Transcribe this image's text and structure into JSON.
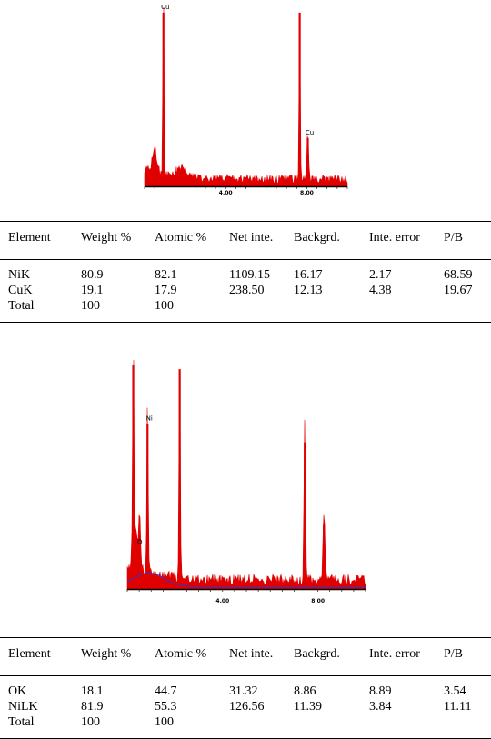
{
  "chart_data": [
    {
      "type": "bar",
      "xlim": [
        0,
        10
      ],
      "ylim": [
        0,
        100
      ],
      "x_ticks": [
        "4.00",
        "8.00"
      ],
      "x_tick_values": [
        4,
        8
      ],
      "peak_labels": [
        {
          "text": "Cu",
          "x": 0.93
        },
        {
          "text": "Cu",
          "x": 8.05
        }
      ],
      "series": [
        {
          "color": "#e00000",
          "peaks": [
            {
              "x": 0.93,
              "y": 97,
              "w": 0.12
            },
            {
              "x": 7.65,
              "y": 97,
              "w": 0.12
            },
            {
              "x": 8.05,
              "y": 27,
              "w": 0.18
            },
            {
              "x": 0.5,
              "y": 12,
              "w": 0.5
            },
            {
              "x": 1.8,
              "y": 6,
              "w": 1.0
            }
          ],
          "baseline": 4
        }
      ]
    },
    {
      "type": "bar",
      "xlim": [
        0,
        10
      ],
      "ylim": [
        0,
        100
      ],
      "x_ticks": [
        "4.00",
        "8.00"
      ],
      "x_tick_values": [
        4,
        8
      ],
      "peak_labels": [
        {
          "text": "Ni",
          "x": 0.85
        },
        {
          "text": "O",
          "x": 0.45
        }
      ],
      "series": [
        {
          "color": "#e00000",
          "peaks": [
            {
              "x": 0.25,
              "y": 98,
              "w": 0.12
            },
            {
              "x": 0.52,
              "y": 20,
              "w": 0.12
            },
            {
              "x": 0.85,
              "y": 72,
              "w": 0.12
            },
            {
              "x": 2.2,
              "y": 96,
              "w": 0.12
            },
            {
              "x": 7.45,
              "y": 64,
              "w": 0.15
            },
            {
              "x": 8.25,
              "y": 28,
              "w": 0.18
            },
            {
              "x": 0.4,
              "y": 18,
              "w": 0.5
            }
          ],
          "baseline": 4
        }
      ],
      "background_curve": {
        "color": "#3333cc"
      }
    }
  ],
  "tables": [
    {
      "headers": [
        "Element",
        "Weight %",
        "Atomic %",
        "Net inte.",
        "Backgrd.",
        "Inte. error",
        "P/B"
      ],
      "rows": [
        [
          "NiK",
          "80.9",
          "82.1",
          "1109.15",
          "16.17",
          "2.17",
          "68.59"
        ],
        [
          "CuK",
          "19.1",
          "17.9",
          "238.50",
          "12.13",
          "4.38",
          "19.67"
        ],
        [
          "Total",
          "100",
          "100",
          "",
          "",
          "",
          ""
        ]
      ]
    },
    {
      "headers": [
        "Element",
        "Weight %",
        "Atomic %",
        "Net inte.",
        "Backgrd.",
        "Inte. error",
        "P/B"
      ],
      "rows": [
        [
          "OK",
          "18.1",
          "44.7",
          "31.32",
          "8.86",
          "8.89",
          "3.54"
        ],
        [
          "NiLK",
          "81.9",
          "55.3",
          "126.56",
          "11.39",
          "3.84",
          "11.11"
        ],
        [
          "Total",
          "100",
          "100",
          "",
          "",
          "",
          ""
        ]
      ]
    }
  ]
}
